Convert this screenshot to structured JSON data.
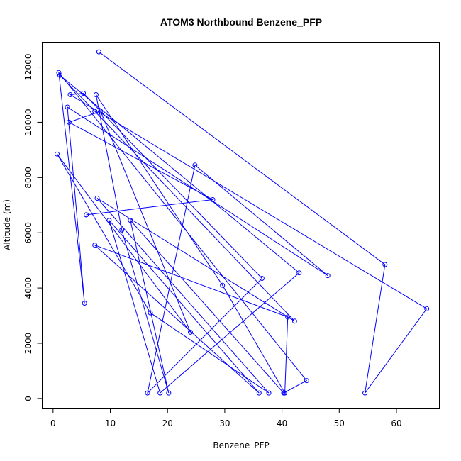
{
  "chart_data": {
    "type": "line",
    "title": "ATOM3 Northbound Benzene_PFP",
    "xlabel": "Benzene_PFP",
    "ylabel": "Altitude (m)",
    "xlim": [
      -1.9,
      67.5
    ],
    "ylim": [
      -350,
      12900
    ],
    "xticks": [
      0,
      10,
      20,
      30,
      40,
      50,
      60
    ],
    "yticks": [
      0,
      2000,
      4000,
      6000,
      8000,
      10000,
      12000
    ],
    "color": "#0000ff",
    "markers": "open-circle",
    "grid": false,
    "series": [
      {
        "x": [
          8.0,
          58.0,
          54.5,
          65.3,
          3.0,
          5.3,
          36.5,
          16.5,
          24.8,
          48.0,
          2.5,
          5.5,
          1.0,
          44.3,
          40.3,
          13.5,
          20.2,
          12.0,
          7.5,
          29.6,
          40.5,
          41.0,
          7.3,
          36.0,
          9.8,
          18.7,
          43.0,
          1.2,
          7.3,
          42.2,
          7.7,
          37.7,
          17.0,
          0.7,
          24.0,
          8.3,
          2.8,
          27.9,
          5.8,
          5.8
        ],
        "y": [
          12550,
          4850,
          200,
          3250,
          11000,
          11050,
          4350,
          200,
          8450,
          4450,
          10550,
          3450,
          11800,
          650,
          200,
          6450,
          200,
          6100,
          11000,
          4100,
          200,
          2950,
          5550,
          200,
          6450,
          200,
          4550,
          11700,
          10400,
          2800,
          7250,
          200,
          3100,
          8850,
          2400,
          10400,
          10000,
          7200,
          6650,
          6650
        ]
      }
    ]
  }
}
